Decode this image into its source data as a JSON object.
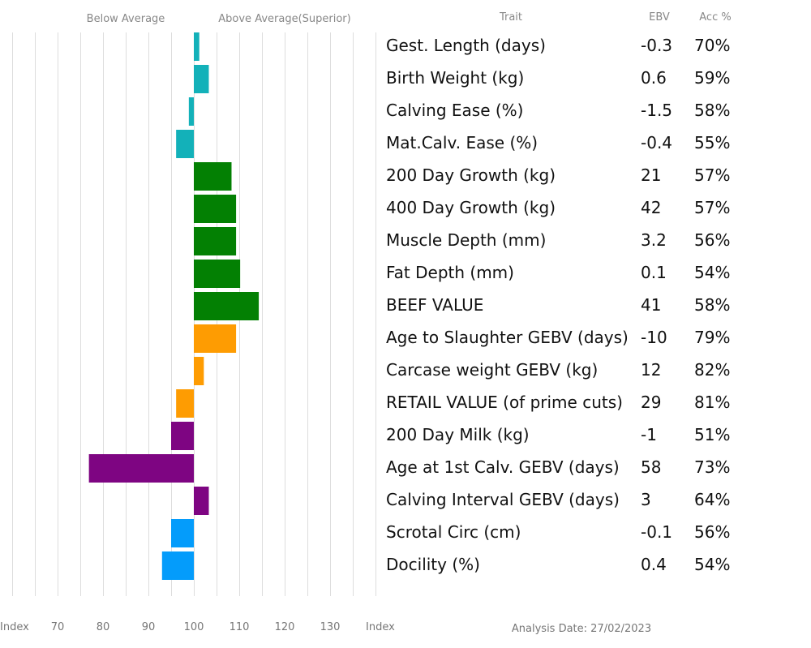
{
  "chart_data": {
    "type": "bar",
    "orientation": "horizontal",
    "baseline": 100,
    "xlim": [
      60,
      140
    ],
    "header": {
      "below_average": "Below Average",
      "above_average": "Above Average(Superior)",
      "trait": "Trait",
      "ebv": "EBV",
      "acc": "Acc %"
    },
    "x_ticks": [
      {
        "label": "Index",
        "value": 60
      },
      {
        "label": "70",
        "value": 70
      },
      {
        "label": "80",
        "value": 80
      },
      {
        "label": "90",
        "value": 90
      },
      {
        "label": "100",
        "value": 100
      },
      {
        "label": "110",
        "value": 110
      },
      {
        "label": "120",
        "value": 120
      },
      {
        "label": "130",
        "value": 130
      },
      {
        "label": "Index",
        "value": 140
      }
    ],
    "analysis_date": "Analysis Date: 27/02/2023",
    "colors": {
      "teal": "#13b1b9",
      "green": "#038003",
      "orange": "#fe9c02",
      "purple": "#7e0582",
      "blue": "#049cfb",
      "grid": "#dddddd"
    },
    "rows": [
      {
        "trait": "Gest. Length (days)",
        "ebv": "-0.3",
        "acc": "70%",
        "index": 101.2,
        "color": "teal"
      },
      {
        "trait": "Birth Weight (kg)",
        "ebv": "0.6",
        "acc": "59%",
        "index": 103.3,
        "color": "teal"
      },
      {
        "trait": "Calving Ease (%)",
        "ebv": "-1.5",
        "acc": "58%",
        "index": 98.9,
        "color": "teal"
      },
      {
        "trait": "Mat.Calv. Ease (%)",
        "ebv": "-0.4",
        "acc": "55%",
        "index": 96.1,
        "color": "teal"
      },
      {
        "trait": "200 Day Growth (kg)",
        "ebv": "21",
        "acc": "57%",
        "index": 108.3,
        "color": "green"
      },
      {
        "trait": "400 Day Growth (kg)",
        "ebv": "42",
        "acc": "57%",
        "index": 109.3,
        "color": "green"
      },
      {
        "trait": "Muscle Depth (mm)",
        "ebv": "3.2",
        "acc": "56%",
        "index": 109.3,
        "color": "green"
      },
      {
        "trait": "Fat Depth (mm)",
        "ebv": "0.1",
        "acc": "54%",
        "index": 110.2,
        "color": "green"
      },
      {
        "trait": "BEEF VALUE",
        "ebv": "41",
        "acc": "58%",
        "index": 114.3,
        "color": "green"
      },
      {
        "trait": "Age to Slaughter GEBV (days)",
        "ebv": "-10",
        "acc": "79%",
        "index": 109.3,
        "color": "orange"
      },
      {
        "trait": "Carcase weight GEBV (kg)",
        "ebv": "12",
        "acc": "82%",
        "index": 102.2,
        "color": "orange"
      },
      {
        "trait": "RETAIL VALUE (of prime cuts)",
        "ebv": "29",
        "acc": "81%",
        "index": 96.1,
        "color": "orange"
      },
      {
        "trait": "200 Day Milk (kg)",
        "ebv": "-1",
        "acc": "51%",
        "index": 95.0,
        "color": "purple"
      },
      {
        "trait": "Age at 1st Calv. GEBV (days)",
        "ebv": "58",
        "acc": "73%",
        "index": 76.9,
        "color": "purple"
      },
      {
        "trait": "Calving Interval GEBV (days)",
        "ebv": "3",
        "acc": "64%",
        "index": 103.3,
        "color": "purple"
      },
      {
        "trait": "Scrotal Circ (cm)",
        "ebv": "-0.1",
        "acc": "56%",
        "index": 95.0,
        "color": "blue"
      },
      {
        "trait": "Docility (%)",
        "ebv": "0.4",
        "acc": "54%",
        "index": 93.0,
        "color": "blue"
      }
    ]
  }
}
